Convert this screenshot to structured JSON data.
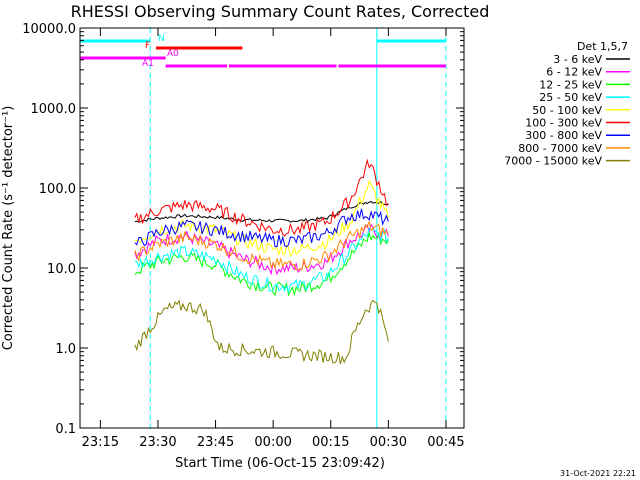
{
  "chart_data": {
    "type": "line",
    "title": "RHESSI Observing Summary Count Rates, Corrected",
    "xlabel": "Start Time (06-Oct-15 23:09:42)",
    "ylabel": "Corrected Count Rate (s⁻¹ detector⁻¹)",
    "y_scale": "log",
    "ylim": [
      0.1,
      10000
    ],
    "xlim": [
      "23:09:42",
      "00:49:42"
    ],
    "x_ticks": [
      "23:15",
      "23:30",
      "23:45",
      "00:00",
      "00:15",
      "00:30",
      "00:45"
    ],
    "y_ticks": [
      "0.1",
      "1.0",
      "10.0",
      "100.0",
      "1000.0",
      "10000.0"
    ],
    "grid": false,
    "legend_title": "Det 1,5,7",
    "legend_position": "right",
    "timestamp": "31-Oct-2021 22:21",
    "series": [
      {
        "name": "3 - 6 keV",
        "color": "#000000",
        "times": [
          "23:24",
          "23:30",
          "23:37",
          "23:45",
          "23:52",
          "00:00",
          "00:07",
          "00:14",
          "00:20",
          "00:25",
          "00:30"
        ],
        "values": [
          38,
          42,
          45,
          43,
          40,
          39,
          39,
          42,
          58,
          68,
          64
        ]
      },
      {
        "name": "6 - 12 keV",
        "color": "#ff00ff",
        "times": [
          "23:24",
          "23:30",
          "23:37",
          "23:45",
          "23:52",
          "00:00",
          "00:07",
          "00:14",
          "00:20",
          "00:25",
          "00:30"
        ],
        "values": [
          15,
          22,
          25,
          19,
          13,
          10,
          10,
          12,
          22,
          30,
          25
        ]
      },
      {
        "name": "12 - 25 keV",
        "color": "#00ff00",
        "times": [
          "23:24",
          "23:30",
          "23:37",
          "23:45",
          "23:52",
          "00:00",
          "00:07",
          "00:14",
          "00:20",
          "00:25",
          "00:30"
        ],
        "values": [
          9,
          12,
          14,
          11,
          7,
          5.5,
          5.5,
          7,
          14,
          25,
          22
        ]
      },
      {
        "name": "25 - 50 keV",
        "color": "#00ffff",
        "times": [
          "23:24",
          "23:30",
          "23:37",
          "23:45",
          "23:52",
          "00:00",
          "00:07",
          "00:14",
          "00:20",
          "00:25",
          "00:30"
        ],
        "values": [
          11,
          14,
          16,
          13,
          8,
          6,
          6,
          8,
          16,
          28,
          24
        ]
      },
      {
        "name": "50 - 100 keV",
        "color": "#ffff00",
        "times": [
          "23:24",
          "23:30",
          "23:37",
          "23:45",
          "23:52",
          "00:00",
          "00:07",
          "00:14",
          "00:20",
          "00:25",
          "00:30"
        ],
        "values": [
          22,
          30,
          34,
          30,
          22,
          17,
          17,
          21,
          38,
          110,
          42
        ]
      },
      {
        "name": "100 - 300 keV",
        "color": "#ff0000",
        "times": [
          "23:24",
          "23:30",
          "23:37",
          "23:45",
          "23:52",
          "00:00",
          "00:07",
          "00:14",
          "00:20",
          "00:25",
          "00:30"
        ],
        "values": [
          40,
          52,
          62,
          55,
          40,
          30,
          30,
          38,
          70,
          210,
          62
        ]
      },
      {
        "name": "300 - 800 keV",
        "color": "#0000ff",
        "times": [
          "23:24",
          "23:30",
          "23:37",
          "23:45",
          "23:52",
          "00:00",
          "00:07",
          "00:14",
          "00:20",
          "00:25",
          "00:30"
        ],
        "values": [
          19,
          28,
          34,
          30,
          25,
          22,
          22,
          27,
          45,
          48,
          38
        ]
      },
      {
        "name": "800 - 7000 keV",
        "color": "#ff8c00",
        "times": [
          "23:24",
          "23:30",
          "23:37",
          "23:45",
          "23:52",
          "00:00",
          "00:07",
          "00:14",
          "00:20",
          "00:25",
          "00:30"
        ],
        "values": [
          14,
          20,
          24,
          20,
          14,
          11,
          11,
          14,
          24,
          33,
          27
        ]
      },
      {
        "name": "7000 - 15000 keV",
        "color": "#808000",
        "times": [
          "23:24",
          "23:28",
          "23:32",
          "23:37",
          "23:42",
          "23:46",
          "00:19",
          "00:21",
          "00:24",
          "00:27",
          "00:30"
        ],
        "values": [
          1.0,
          1.8,
          3.0,
          3.4,
          3.0,
          1.0,
          0.75,
          1.5,
          3.0,
          4.0,
          1.2
        ]
      }
    ],
    "markers": {
      "vlines_solid": [
        "23:09:42",
        "00:27:00"
      ],
      "vlines_dashed": [
        "23:28:00",
        "00:45:00"
      ],
      "vline_color": "#00ffff"
    },
    "status_bars": [
      {
        "label": "N",
        "color": "#00ffff",
        "segments": [
          [
            "23:09:42",
            "23:28:00"
          ],
          [
            "00:27:00",
            "00:45:00"
          ]
        ]
      },
      {
        "label": "F",
        "color": "#ff0000",
        "segments": [
          [
            "23:29:30",
            "23:52:00"
          ]
        ]
      },
      {
        "label": "A0",
        "color": "#ff00ff",
        "segments": [
          [
            "23:09:42",
            "23:32:00"
          ]
        ]
      },
      {
        "label": "A1",
        "color": "#ff00ff",
        "segments": [
          [
            "23:32:00",
            "23:48:00"
          ],
          [
            "23:48:30",
            "00:16:30"
          ],
          [
            "00:17:00",
            "00:45:00"
          ]
        ]
      }
    ]
  }
}
